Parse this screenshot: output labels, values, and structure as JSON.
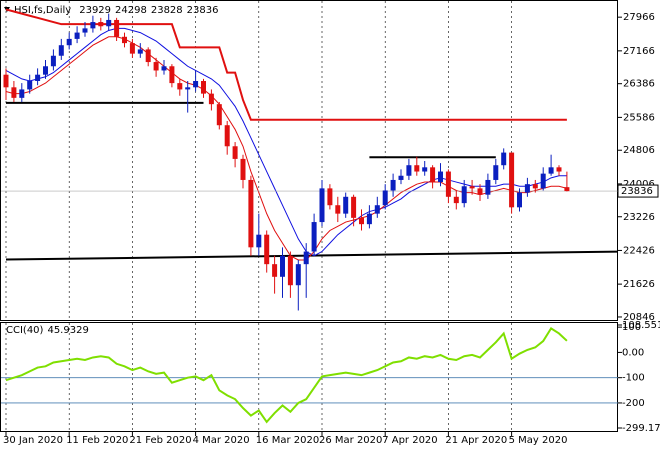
{
  "chart_data": {
    "type": "candlestick",
    "symbol": "HSI,fs,Daily",
    "colors": {
      "up": "#0b1fbf",
      "down": "#e01010"
    },
    "categories": [
      "30 Jan 2020",
      null,
      null,
      null,
      null,
      null,
      null,
      null,
      "11 Feb 2020",
      null,
      null,
      null,
      null,
      null,
      null,
      null,
      "21 Feb 2020",
      null,
      null,
      null,
      null,
      null,
      null,
      null,
      "4 Mar 2020",
      null,
      null,
      null,
      null,
      null,
      null,
      null,
      "16 Mar 2020",
      null,
      null,
      null,
      null,
      null,
      null,
      null,
      "26 Mar 2020",
      null,
      null,
      null,
      null,
      null,
      null,
      null,
      "7 Apr 2020",
      null,
      null,
      null,
      null,
      null,
      null,
      null,
      "21 Apr 2020",
      null,
      null,
      null,
      null,
      null,
      null,
      null,
      "5 May 2020",
      null,
      null,
      null,
      null,
      null,
      null,
      null
    ],
    "open": [
      26600,
      26300,
      26050,
      26250,
      26450,
      26600,
      26800,
      27050,
      27300,
      27450,
      27600,
      27700,
      27850,
      27750,
      27900,
      27500,
      27350,
      27100,
      27200,
      26900,
      26700,
      26800,
      26400,
      26250,
      26300,
      26450,
      26150,
      25900,
      25400,
      24900,
      24600,
      24100,
      22500,
      22800,
      22100,
      21800,
      22300,
      21600,
      22100,
      22400,
      23100,
      23900,
      23500,
      23300,
      23700,
      23200,
      23050,
      23300,
      23500,
      23850,
      24100,
      24200,
      24450,
      24300,
      24400,
      24050,
      24300,
      23700,
      23550,
      23950,
      23900,
      23750,
      24100,
      24450,
      24750,
      23450,
      23800,
      24000,
      23900,
      24250,
      24400,
      23929
    ],
    "high": [
      26750,
      26450,
      26400,
      26600,
      26750,
      26950,
      27200,
      27450,
      27600,
      27750,
      27850,
      28000,
      27950,
      28050,
      27950,
      27600,
      27450,
      27350,
      27250,
      27000,
      26950,
      26850,
      26500,
      26450,
      26700,
      26500,
      26250,
      25950,
      25500,
      25000,
      24700,
      24200,
      23300,
      22900,
      22300,
      22500,
      22400,
      22200,
      22600,
      23300,
      24100,
      24000,
      23700,
      23800,
      23750,
      23400,
      23500,
      23700,
      24000,
      24250,
      24350,
      24600,
      24650,
      24550,
      24450,
      24500,
      24350,
      23850,
      24100,
      24100,
      24000,
      24250,
      24600,
      24850,
      24750,
      23900,
      24150,
      24100,
      24400,
      24700,
      24450,
      24298
    ],
    "low": [
      26000,
      25950,
      25950,
      26150,
      26350,
      26500,
      26700,
      26950,
      27200,
      27350,
      27500,
      27600,
      27650,
      27650,
      27400,
      27250,
      27000,
      27000,
      26800,
      26550,
      26600,
      26300,
      26100,
      25700,
      26200,
      26050,
      25750,
      25300,
      24700,
      24400,
      23900,
      22300,
      22300,
      21900,
      21400,
      21300,
      21300,
      21000,
      21300,
      22300,
      23000,
      23400,
      23100,
      23200,
      23000,
      22900,
      22950,
      23200,
      23400,
      23700,
      24000,
      24100,
      24200,
      24200,
      23900,
      23950,
      23550,
      23400,
      23450,
      23750,
      23600,
      23650,
      24000,
      24350,
      23300,
      23350,
      23700,
      23800,
      23850,
      24200,
      24200,
      23828
    ],
    "close": [
      26300,
      26050,
      26250,
      26450,
      26600,
      26800,
      27050,
      27300,
      27450,
      27600,
      27700,
      27850,
      27750,
      27900,
      27500,
      27350,
      27100,
      27200,
      26900,
      26700,
      26800,
      26400,
      26250,
      26300,
      26450,
      26150,
      25900,
      25400,
      24900,
      24600,
      24100,
      22500,
      22800,
      22100,
      21800,
      22300,
      21600,
      22100,
      22400,
      23100,
      23900,
      23500,
      23300,
      23700,
      23200,
      23050,
      23300,
      23500,
      23850,
      24100,
      24200,
      24450,
      24300,
      24400,
      24050,
      24300,
      23700,
      23550,
      23950,
      23900,
      23750,
      24100,
      24450,
      24750,
      23450,
      23800,
      24000,
      23900,
      24250,
      24400,
      24300,
      23836
    ],
    "overlays": [
      {
        "color": "#1010e0",
        "values": [
          26700,
          26600,
          26500,
          26450,
          26500,
          26550,
          26650,
          26800,
          26950,
          27100,
          27250,
          27400,
          27550,
          27650,
          27700,
          27700,
          27650,
          27600,
          27500,
          27400,
          27250,
          27100,
          26950,
          26800,
          26700,
          26600,
          26500,
          26350,
          26100,
          25850,
          25500,
          25100,
          24700,
          24300,
          23900,
          23500,
          23100,
          22700,
          22400,
          22300,
          22400,
          22600,
          22800,
          22950,
          23100,
          23250,
          23350,
          23400,
          23450,
          23550,
          23650,
          23800,
          23900,
          24000,
          24100,
          24150,
          24100,
          24050,
          24000,
          23950,
          23950,
          23950,
          23950,
          24000,
          24000,
          23950,
          23950,
          24000,
          24050,
          24150,
          24200,
          24200
        ]
      },
      {
        "color": "#e01010",
        "values": [
          26200,
          26150,
          26150,
          26200,
          26300,
          26400,
          26550,
          26700,
          26850,
          27000,
          27150,
          27300,
          27400,
          27500,
          27500,
          27450,
          27350,
          27250,
          27100,
          26950,
          26800,
          26650,
          26500,
          26400,
          26350,
          26250,
          26100,
          25900,
          25600,
          25300,
          24900,
          24300,
          23800,
          23300,
          22900,
          22600,
          22300,
          22200,
          22200,
          22400,
          22700,
          22900,
          23000,
          23100,
          23150,
          23200,
          23250,
          23350,
          23500,
          23650,
          23800,
          23900,
          24000,
          24050,
          24050,
          24050,
          23950,
          23850,
          23800,
          23800,
          23750,
          23800,
          23850,
          23900,
          23850,
          23800,
          23800,
          23850,
          23900,
          23950,
          23950,
          23900
        ]
      },
      {
        "color": "#e01010",
        "width": 2,
        "values": [
          28150,
          28100,
          28050,
          28000,
          27950,
          27900,
          27850,
          27800,
          27800,
          27800,
          27800,
          27800,
          27800,
          27800,
          27800,
          27800,
          27800,
          27800,
          27800,
          27800,
          27800,
          27800,
          27250,
          27250,
          27250,
          27250,
          27250,
          27250,
          26650,
          26650,
          26000,
          25530,
          25530,
          25530,
          25530,
          25530,
          25530,
          25530,
          25530,
          25530,
          25530,
          25530,
          25530,
          25530,
          25530,
          25530,
          25530,
          25530,
          25530,
          25530,
          25530,
          25530,
          25530,
          25530,
          25530,
          25530,
          25530,
          25530,
          25530,
          25530,
          25530,
          25530,
          25530,
          25530,
          25530,
          25530,
          25530,
          25530,
          25530,
          25530,
          25530,
          25530
        ]
      }
    ],
    "levels": [
      {
        "color": "#000000",
        "x": [
          0,
          25
        ],
        "values": [
          25930,
          25930
        ]
      },
      {
        "color": "#000000",
        "x": [
          46,
          62
        ],
        "values": [
          24640,
          24640
        ]
      },
      {
        "color": "#000000",
        "x": [
          0,
          78
        ],
        "values": [
          22210,
          22400
        ]
      }
    ],
    "ylim": [
      20774,
      28350
    ],
    "yticks": [
      27966,
      27166,
      26386,
      25586,
      24806,
      24006,
      23226,
      22426,
      21626,
      20846
    ],
    "grid": true,
    "cci": {
      "title": "CCI(40)",
      "color": "#7fdf00",
      "level_color": "#4a7fb0",
      "ylim": [
        -315,
        116.4
      ],
      "yticks": [
        {
          "value": 108.5514,
          "label": "108.5514"
        },
        100,
        {
          "value": 0,
          "label": "0.00"
        },
        -100,
        -200,
        {
          "value": -299.175,
          "label": "-299.1750"
        }
      ],
      "levels": [
        -100,
        -200
      ],
      "values": [
        -110,
        -100,
        -90,
        -75,
        -60,
        -55,
        -40,
        -35,
        -30,
        -25,
        -30,
        -20,
        -15,
        -20,
        -45,
        -55,
        -70,
        -60,
        -75,
        -85,
        -80,
        -120,
        -110,
        -100,
        -95,
        -110,
        -90,
        -150,
        -170,
        -185,
        -220,
        -250,
        -230,
        -275,
        -240,
        -210,
        -235,
        -200,
        -185,
        -140,
        -95,
        -90,
        -85,
        -80,
        -85,
        -90,
        -80,
        -70,
        -55,
        -40,
        -35,
        -20,
        -25,
        -15,
        -20,
        -10,
        -25,
        -30,
        -15,
        -10,
        -20,
        10,
        40,
        75,
        -25,
        -5,
        10,
        20,
        45,
        95,
        75,
        45.9329
      ]
    }
  }
}
